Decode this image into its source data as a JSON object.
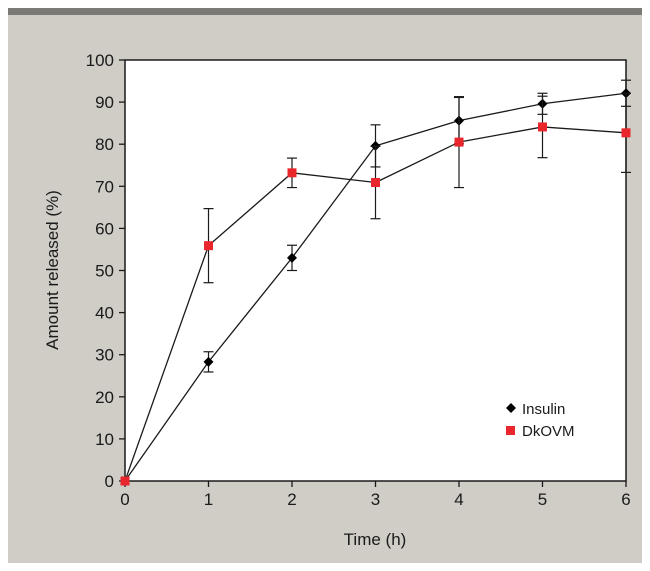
{
  "chart_data": {
    "type": "line",
    "xlabel": "Time (h)",
    "ylabel": "Amount released (%)",
    "xlim": [
      0,
      6
    ],
    "ylim": [
      0,
      100
    ],
    "xticks": [
      0,
      1,
      2,
      3,
      4,
      5,
      6
    ],
    "yticks": [
      0,
      10,
      20,
      30,
      40,
      50,
      60,
      70,
      80,
      90,
      100
    ],
    "grid": false,
    "legend_position": "lower-right",
    "series": [
      {
        "name": "Insulin",
        "marker": "diamond",
        "color": "#000000",
        "x": [
          0,
          1,
          2,
          3,
          4,
          5,
          6
        ],
        "y": [
          0,
          28.3,
          53,
          79.6,
          85.6,
          89.6,
          92.1
        ],
        "err": [
          0,
          2.4,
          3,
          5,
          5.5,
          2.5,
          3.1
        ]
      },
      {
        "name": "DkOVM",
        "marker": "square",
        "color": "#e8262c",
        "x": [
          0,
          1,
          2,
          3,
          4,
          5,
          6
        ],
        "y": [
          0,
          55.9,
          73.2,
          70.9,
          80.5,
          84.1,
          82.7
        ],
        "err": [
          0,
          8.8,
          3.5,
          8.6,
          10.8,
          7.3,
          9.4
        ]
      }
    ]
  },
  "colors": {
    "panel_background": "#cfcdc6",
    "top_rule": "#7b7a76",
    "plot_background": "#ffffff"
  }
}
